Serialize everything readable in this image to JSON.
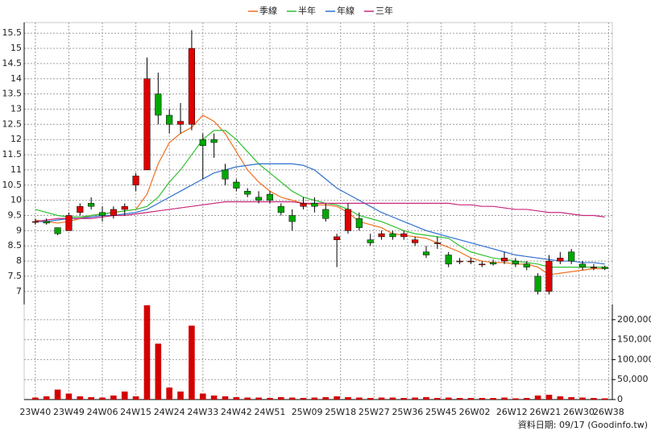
{
  "chart_data": {
    "type": "candlestick",
    "grid": true,
    "legend_position": "top",
    "x": [
      0,
      3,
      6,
      9,
      12,
      15,
      18,
      21,
      24,
      27,
      30,
      33,
      36,
      39,
      42,
      45,
      48,
      51,
      54,
      57,
      60,
      63,
      66,
      69,
      72,
      75,
      78,
      81,
      84,
      87,
      90,
      93,
      96,
      99,
      102,
      105,
      108,
      111,
      114,
      117,
      120,
      123,
      126,
      129,
      132,
      135,
      138,
      141,
      144,
      147,
      150,
      153
    ],
    "xlim": [
      -3,
      155
    ],
    "xticks": [
      {
        "value": 0,
        "label": "23W40"
      },
      {
        "value": 9,
        "label": "23W49"
      },
      {
        "value": 18,
        "label": "24W06"
      },
      {
        "value": 27,
        "label": "24W15"
      },
      {
        "value": 36,
        "label": "24W24"
      },
      {
        "value": 45,
        "label": "24W33"
      },
      {
        "value": 54,
        "label": "24W42"
      },
      {
        "value": 63,
        "label": "24W51"
      },
      {
        "value": 73,
        "label": "25W09"
      },
      {
        "value": 82,
        "label": "25W18"
      },
      {
        "value": 91,
        "label": "25W27"
      },
      {
        "value": 100,
        "label": "25W36"
      },
      {
        "value": 109,
        "label": "25W45"
      },
      {
        "value": 118,
        "label": "26W02"
      },
      {
        "value": 128,
        "label": "26W12"
      },
      {
        "value": 137,
        "label": "26W21"
      },
      {
        "value": 146,
        "label": "26W30"
      },
      {
        "value": 154,
        "label": "26W38"
      }
    ],
    "ylim": [
      6.57,
      15.85
    ],
    "yticks": [
      7,
      7.5,
      8,
      8.5,
      9,
      9.5,
      10,
      10.5,
      11,
      11.5,
      12,
      12.5,
      13,
      13.5,
      14,
      14.5,
      15,
      15.5
    ],
    "y2lim": [
      0,
      238000
    ],
    "y2ticks": [
      0,
      {
        "value": 50000,
        "label": "50,000"
      },
      {
        "value": 100000,
        "label": "100,000"
      },
      {
        "value": 150000,
        "label": "150,000"
      },
      {
        "value": 200000,
        "label": "200,000"
      }
    ],
    "up_color": "#e00000",
    "down_color": "#00a800",
    "candles": {
      "open": [
        9.3,
        9.3,
        9.1,
        9.0,
        9.6,
        9.9,
        9.6,
        9.5,
        9.7,
        10.5,
        11,
        13.5,
        12.8,
        12.5,
        12.5,
        12.0,
        12.0,
        11,
        10.6,
        10.3,
        10.1,
        10.2,
        9.8,
        9.5,
        9.8,
        9.9,
        9.7,
        8.7,
        9.0,
        9.4,
        8.7,
        8.8,
        8.9,
        8.8,
        8.6,
        8.3,
        8.6,
        8.2,
        8.0,
        8.0,
        7.9,
        7.95,
        8.0,
        8.0,
        7.9,
        7.5,
        7.0,
        8.0,
        8.3,
        7.9,
        7.8,
        7.8
      ],
      "high": [
        9.4,
        9.4,
        9.1,
        9.6,
        9.9,
        10.1,
        9.8,
        9.8,
        9.9,
        10.9,
        14.7,
        14.2,
        13,
        13.2,
        15.6,
        12.2,
        12.2,
        11.2,
        10.7,
        10.4,
        10.3,
        10.3,
        9.9,
        9.7,
        10.1,
        10.1,
        9.9,
        8.9,
        9.9,
        9.6,
        8.9,
        9.0,
        9.0,
        9.0,
        8.8,
        8.5,
        8.8,
        8.3,
        8.1,
        8.1,
        8.0,
        8.05,
        8.3,
        8.1,
        8.0,
        7.6,
        8.2,
        8.3,
        8.4,
        8.0,
        7.9,
        7.85
      ],
      "low": [
        9.2,
        9.2,
        8.85,
        9.0,
        9.5,
        9.7,
        9.3,
        9.4,
        9.5,
        10.3,
        11,
        12.5,
        12.2,
        12.2,
        12.3,
        10.7,
        11.4,
        10.5,
        10.3,
        10.1,
        9.9,
        9.9,
        9.5,
        9.0,
        9.7,
        9.6,
        9.3,
        7.8,
        8.9,
        9.0,
        8.5,
        8.7,
        8.7,
        8.7,
        8.5,
        8.1,
        8.4,
        7.8,
        7.9,
        7.9,
        7.8,
        7.85,
        7.9,
        7.8,
        7.7,
        6.9,
        6.9,
        7.9,
        7.9,
        7.7,
        7.7,
        7.7
      ],
      "close": [
        9.3,
        9.25,
        8.9,
        9.5,
        9.8,
        9.8,
        9.5,
        9.7,
        9.8,
        10.8,
        14.0,
        12.8,
        12.5,
        12.6,
        15.0,
        11.8,
        11.9,
        10.7,
        10.4,
        10.2,
        10.0,
        10.0,
        9.6,
        9.3,
        9.9,
        9.8,
        9.4,
        8.8,
        9.7,
        9.1,
        8.6,
        8.9,
        8.8,
        8.9,
        8.7,
        8.2,
        8.6,
        7.9,
        8.0,
        8.0,
        7.9,
        7.9,
        8.1,
        7.9,
        7.8,
        7.0,
        8.0,
        8.1,
        8.0,
        7.8,
        7.8,
        7.75
      ]
    },
    "volume": {
      "color": "#d40000",
      "axis": "y2",
      "values": [
        5000,
        8000,
        25000,
        15000,
        8000,
        6000,
        5000,
        10000,
        20000,
        8000,
        236000,
        140000,
        30000,
        20000,
        185000,
        15000,
        10000,
        8000,
        6000,
        5000,
        5000,
        4000,
        6000,
        5000,
        4000,
        5000,
        6000,
        8000,
        6000,
        5000,
        4000,
        5000,
        5000,
        4000,
        5000,
        6000,
        4000,
        5000,
        4000,
        4000,
        4000,
        4000,
        5000,
        3000,
        4000,
        10000,
        12000,
        8000,
        6000,
        5000,
        4000,
        3000
      ]
    },
    "series": [
      {
        "name": "季線",
        "color": "#f07020",
        "values": [
          9.35,
          9.3,
          9.25,
          9.3,
          9.4,
          9.5,
          9.55,
          9.6,
          9.65,
          9.7,
          10.2,
          11.2,
          11.9,
          12.2,
          12.4,
          12.8,
          12.6,
          12.2,
          11.6,
          11.0,
          10.6,
          10.3,
          10.1,
          10.0,
          9.9,
          9.85,
          9.85,
          9.8,
          9.6,
          9.3,
          9.2,
          9.1,
          8.9,
          8.85,
          8.8,
          8.75,
          8.6,
          8.45,
          8.3,
          8.1,
          8.0,
          7.95,
          7.95,
          7.9,
          7.9,
          7.8,
          7.55,
          7.6,
          7.65,
          7.7,
          7.75,
          7.75
        ]
      },
      {
        "name": "半年",
        "color": "#30c030",
        "values": [
          9.7,
          9.6,
          9.5,
          9.45,
          9.45,
          9.5,
          9.55,
          9.6,
          9.65,
          9.7,
          9.8,
          10.1,
          10.6,
          11.0,
          11.5,
          12.0,
          12.3,
          12.3,
          12.0,
          11.6,
          11.2,
          10.9,
          10.6,
          10.3,
          10.1,
          10.0,
          9.9,
          9.85,
          9.7,
          9.5,
          9.4,
          9.3,
          9.15,
          9.0,
          8.9,
          8.85,
          8.8,
          8.75,
          8.5,
          8.3,
          8.2,
          8.1,
          8.05,
          8.0,
          7.95,
          7.9,
          7.8,
          7.8,
          7.8,
          7.8,
          7.8,
          7.8
        ]
      },
      {
        "name": "年線",
        "color": "#2f6fd0",
        "values": [
          9.3,
          9.3,
          9.35,
          9.4,
          9.4,
          9.45,
          9.5,
          9.5,
          9.55,
          9.6,
          9.7,
          9.9,
          10.1,
          10.3,
          10.5,
          10.7,
          10.9,
          11.0,
          11.1,
          11.15,
          11.2,
          11.2,
          11.2,
          11.2,
          11.15,
          11.0,
          10.7,
          10.4,
          10.2,
          10.0,
          9.8,
          9.6,
          9.45,
          9.3,
          9.15,
          9.0,
          8.9,
          8.8,
          8.7,
          8.6,
          8.5,
          8.4,
          8.3,
          8.2,
          8.15,
          8.1,
          8.05,
          8.0,
          8.0,
          7.95,
          7.95,
          7.9
        ]
      },
      {
        "name": "三年",
        "color": "#c8287a",
        "values": [
          9.3,
          9.35,
          9.4,
          9.4,
          9.4,
          9.4,
          9.45,
          9.5,
          9.5,
          9.55,
          9.6,
          9.65,
          9.7,
          9.75,
          9.8,
          9.85,
          9.9,
          9.95,
          9.95,
          9.95,
          9.95,
          9.95,
          9.95,
          9.95,
          9.9,
          9.9,
          9.9,
          9.9,
          9.9,
          9.9,
          9.9,
          9.9,
          9.9,
          9.9,
          9.9,
          9.9,
          9.9,
          9.9,
          9.85,
          9.85,
          9.8,
          9.8,
          9.75,
          9.7,
          9.7,
          9.65,
          9.6,
          9.6,
          9.55,
          9.5,
          9.5,
          9.45
        ]
      }
    ],
    "footer": "資料日期: 09/17 (Goodinfo.tw)"
  }
}
